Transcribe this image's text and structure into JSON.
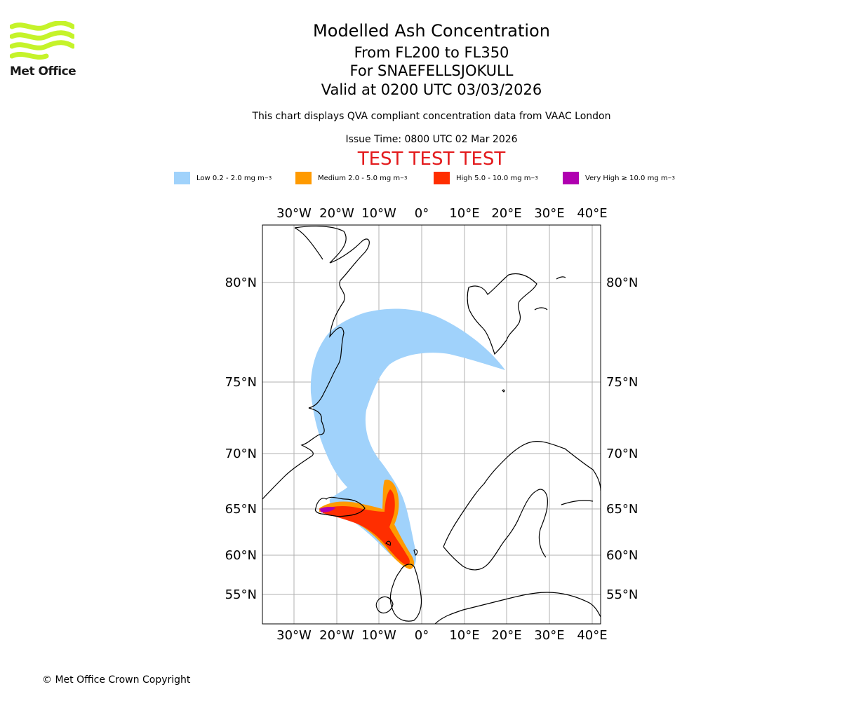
{
  "header": {
    "title": "Modelled Ash Concentration",
    "levels": "From FL200 to FL350",
    "volcano": "For SNAEFELLSJOKULL",
    "valid": "Valid at 0200 UTC 03/03/2026",
    "subtitle": "This chart displays QVA compliant concentration data from VAAC London",
    "issue": "Issue Time: 0800 UTC 02 Mar 2026",
    "test": "TEST TEST TEST"
  },
  "logo": {
    "text": "Met Office",
    "color": "#c5f32a"
  },
  "legend": [
    {
      "label": "Low 0.2 - 2.0 mg m",
      "unit_sup": "−3",
      "color": "#a0d2fb"
    },
    {
      "label": "Medium 2.0 - 5.0 mg m",
      "unit_sup": "−3",
      "color": "#ff9a00"
    },
    {
      "label": "High 5.0 - 10.0 mg m",
      "unit_sup": "−3",
      "color": "#ff2e00"
    },
    {
      "label": "Very High  ≥  10.0 mg m",
      "unit_sup": "−3",
      "color": "#b000b0"
    }
  ],
  "map": {
    "lon_labels": [
      "30°W",
      "20°W",
      "10°W",
      "0°",
      "10°E",
      "20°E",
      "30°E",
      "40°E"
    ],
    "lat_labels": [
      "80°N",
      "75°N",
      "70°N",
      "65°N",
      "60°N",
      "55°N"
    ]
  },
  "footer": {
    "copyright": "© Met Office Crown Copyright"
  }
}
